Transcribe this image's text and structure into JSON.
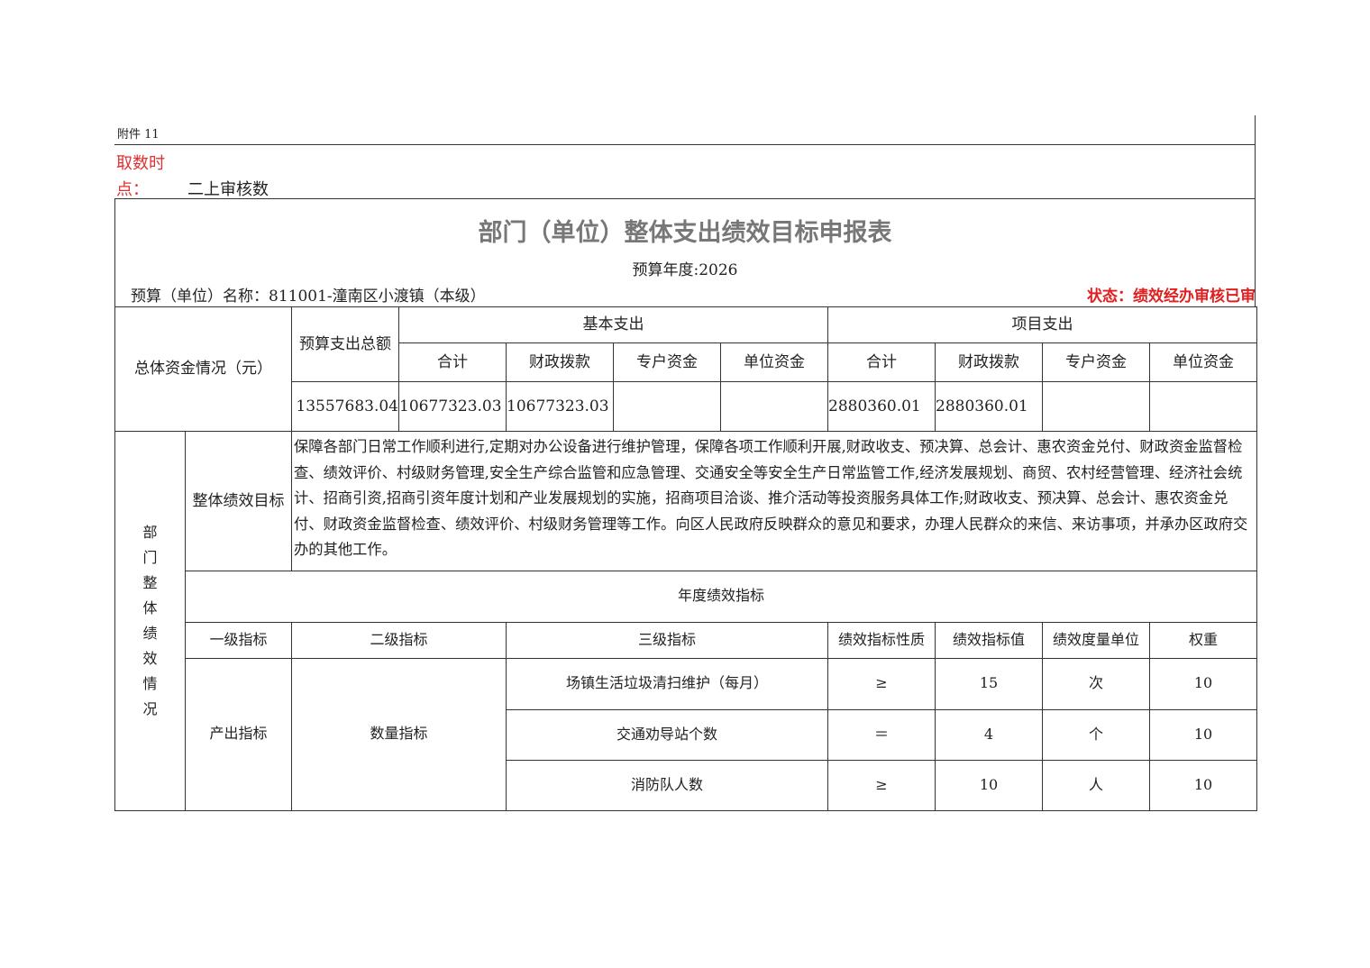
{
  "attachment": "附件 11",
  "query_time": {
    "label_line1": "取数时",
    "label_line2": "点：",
    "value": "二上审核数"
  },
  "title": "部门（单位）整体支出绩效目标申报表",
  "budget_year": "预算年度:2026",
  "unit_name": "预算（单位）名称：811001-潼南区小渡镇（本级）",
  "status": "状态：绩效经办审核已审",
  "funds": {
    "row_label": "总体资金情况（元）",
    "total_label": "预算支出总额",
    "basic_label": "基本支出",
    "project_label": "项目支出",
    "sub_headers": [
      "合计",
      "财政拨款",
      "专户资金",
      "单位资金",
      "合计",
      "财政拨款",
      "专户资金",
      "单位资金"
    ],
    "total": "13557683.04",
    "values": [
      "10677323.03",
      "10677323.03",
      "",
      "",
      "2880360.01",
      "2880360.01",
      "",
      ""
    ]
  },
  "performance": {
    "section_label": "部\n门\n整\n体\n绩\n效\n情\n况",
    "goal_label": "整体绩效目标",
    "goal_text": "保障各部门日常工作顺利进行,定期对办公设备进行维护管理，保障各项工作顺利开展,财政收支、预决算、总会计、惠农资金兑付、财政资金监督检查、绩效评价、村级财务管理,安全生产综合监管和应急管理、交通安全等安全生产日常监管工作,经济发展规划、商贸、农村经营管理、经济社会统计、招商引资,招商引资年度计划和产业发展规划的实施，招商项目洽谈、推介活动等投资服务具体工作;财政收支、预决算、总会计、惠农资金兑付、财政资金监督检查、绩效评价、村级财务管理等工作。向区人民政府反映群众的意见和要求，办理人民群众的来信、来访事项，并承办区政府交办的其他工作。",
    "annual_label": "年度绩效指标",
    "headers": [
      "一级指标",
      "二级指标",
      "三级指标",
      "绩效指标性质",
      "绩效指标值",
      "绩效度量单位",
      "权重"
    ],
    "level1": "产出指标",
    "level2": "数量指标",
    "rows": [
      {
        "level3": "场镇生活垃圾清扫维护（每月）",
        "nature": "≥",
        "value": "15",
        "unit": "次",
        "weight": "10"
      },
      {
        "level3": "交通劝导站个数",
        "nature": "＝",
        "value": "4",
        "unit": "个",
        "weight": "10"
      },
      {
        "level3": "消防队人数",
        "nature": "≥",
        "value": "10",
        "unit": "人",
        "weight": "10"
      }
    ]
  },
  "colors": {
    "red_label": "#e03030",
    "status": "#e02020",
    "title": "#777777"
  }
}
